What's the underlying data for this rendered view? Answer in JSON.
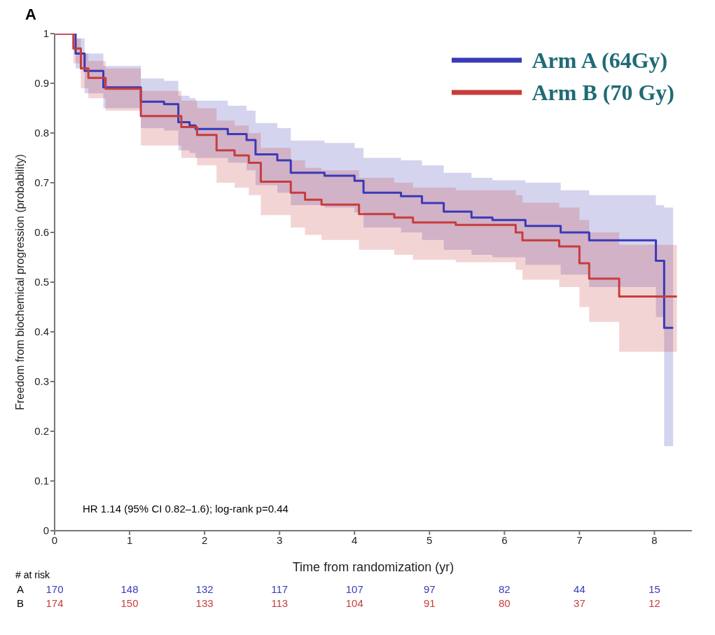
{
  "chart_data": {
    "type": "step",
    "title": "A",
    "xlabel": "Time from randomization (yr)",
    "ylabel": "Freedom from biochemical progression (probability)",
    "xlim": [
      0,
      8.5
    ],
    "xticks": [
      0,
      1,
      2,
      3,
      4,
      5,
      6,
      7,
      8
    ],
    "ylim": [
      0,
      1
    ],
    "yticks": [
      0,
      0.1,
      0.2,
      0.3,
      0.4,
      0.5,
      0.6,
      0.7,
      0.8,
      0.9,
      1
    ],
    "grid": false,
    "legend": "top right",
    "marker": "none",
    "line_style": "solid",
    "series": [
      {
        "name": "Arm A (64Gy)",
        "color": "#3a3ab8",
        "x": [
          0,
          0.28,
          0.4,
          0.65,
          1.15,
          1.46,
          1.65,
          1.8,
          1.88,
          2.31,
          2.56,
          2.68,
          2.97,
          3.15,
          3.6,
          4.0,
          4.12,
          4.62,
          4.9,
          5.19,
          5.56,
          5.84,
          6.28,
          6.75,
          7.13,
          8.02,
          8.13,
          8.25
        ],
        "values": [
          1,
          0.96,
          0.925,
          0.892,
          0.863,
          0.858,
          0.822,
          0.815,
          0.808,
          0.798,
          0.786,
          0.757,
          0.745,
          0.72,
          0.714,
          0.704,
          0.68,
          0.673,
          0.659,
          0.642,
          0.63,
          0.625,
          0.613,
          0.6,
          0.584,
          0.543,
          0.408,
          0.408
        ],
        "lower": [
          1,
          0.93,
          0.88,
          0.85,
          0.81,
          0.805,
          0.765,
          0.76,
          0.75,
          0.74,
          0.725,
          0.695,
          0.68,
          0.655,
          0.65,
          0.64,
          0.61,
          0.6,
          0.585,
          0.565,
          0.555,
          0.55,
          0.535,
          0.515,
          0.49,
          0.43,
          0.17,
          0.17
        ],
        "upper": [
          1,
          0.99,
          0.96,
          0.935,
          0.91,
          0.905,
          0.875,
          0.87,
          0.865,
          0.855,
          0.845,
          0.82,
          0.81,
          0.785,
          0.78,
          0.77,
          0.75,
          0.745,
          0.735,
          0.72,
          0.71,
          0.705,
          0.7,
          0.685,
          0.675,
          0.655,
          0.65,
          0.65
        ]
      },
      {
        "name": "Arm B (70 Gy)",
        "color": "#c83c3c",
        "x": [
          0,
          0.25,
          0.35,
          0.45,
          0.68,
          1.15,
          1.69,
          1.9,
          2.16,
          2.4,
          2.59,
          2.75,
          3.15,
          3.34,
          3.56,
          4.06,
          4.53,
          4.78,
          5.35,
          6.15,
          6.24,
          6.73,
          7.0,
          7.13,
          7.53,
          8.3
        ],
        "values": [
          1,
          0.97,
          0.93,
          0.911,
          0.889,
          0.834,
          0.812,
          0.796,
          0.765,
          0.755,
          0.74,
          0.702,
          0.68,
          0.666,
          0.656,
          0.637,
          0.63,
          0.62,
          0.615,
          0.6,
          0.584,
          0.572,
          0.538,
          0.507,
          0.471,
          0.471
        ],
        "lower": [
          1,
          0.94,
          0.89,
          0.87,
          0.845,
          0.775,
          0.75,
          0.735,
          0.7,
          0.69,
          0.675,
          0.635,
          0.61,
          0.595,
          0.585,
          0.565,
          0.555,
          0.545,
          0.54,
          0.525,
          0.505,
          0.49,
          0.45,
          0.42,
          0.36,
          0.36
        ],
        "upper": [
          1,
          0.99,
          0.96,
          0.945,
          0.93,
          0.885,
          0.865,
          0.85,
          0.825,
          0.815,
          0.8,
          0.77,
          0.745,
          0.73,
          0.725,
          0.71,
          0.7,
          0.69,
          0.685,
          0.675,
          0.66,
          0.65,
          0.625,
          0.6,
          0.575,
          0.575
        ]
      }
    ],
    "annotations": [
      "HR 1.14  (95% CI  0.82–1.6);  log-rank p=0.44",
      "# at risk",
      "A",
      "B",
      "170",
      "148",
      "132",
      "117",
      "107",
      "97",
      "82",
      "44",
      "15",
      "174",
      "150",
      "133",
      "113",
      "104",
      "91",
      "80",
      "37",
      "12"
    ]
  }
}
